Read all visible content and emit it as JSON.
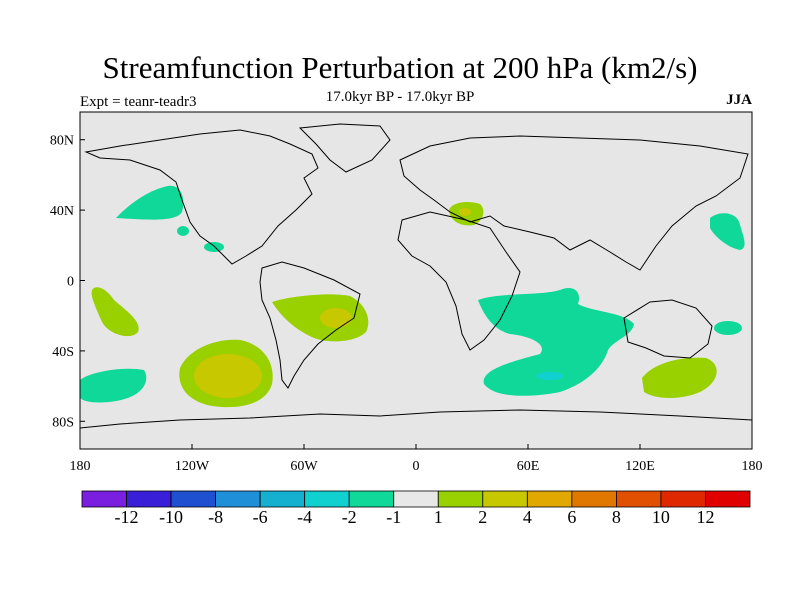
{
  "title": "Streamfunction Perturbation at 200 hPa (km2/s)",
  "left_label": "Expt = teanr-teadr3",
  "center_label": "17.0kyr BP - 17.0kyr BP",
  "right_label": "JJA",
  "lat_labels": [
    "80N",
    "40N",
    "0",
    "40S",
    "80S"
  ],
  "lat_values": [
    80,
    40,
    0,
    -40,
    -80
  ],
  "lon_labels": [
    "180",
    "120W",
    "60W",
    "0",
    "60E",
    "120E",
    "180"
  ],
  "lon_values": [
    -180,
    -120,
    -60,
    0,
    60,
    120,
    180
  ],
  "colorbar": {
    "colors": [
      "#7a1fe0",
      "#3a1fd8",
      "#1f50d0",
      "#1f90d8",
      "#15b0d0",
      "#10d0d0",
      "#10d898",
      "#e8e8e8",
      "#98d000",
      "#c8c800",
      "#e0a800",
      "#e07800",
      "#e05000",
      "#e02800",
      "#e00000"
    ],
    "labels": [
      "-12",
      "-10",
      "-8",
      "-6",
      "-4",
      "-2",
      "-1",
      "1",
      "2",
      "4",
      "6",
      "8",
      "10",
      "12"
    ]
  },
  "colors": {
    "background": "#e6e6e6",
    "neg1": "#10d898",
    "neg2": "#10d0d0",
    "pos1": "#98d000",
    "pos2": "#c8c800"
  }
}
